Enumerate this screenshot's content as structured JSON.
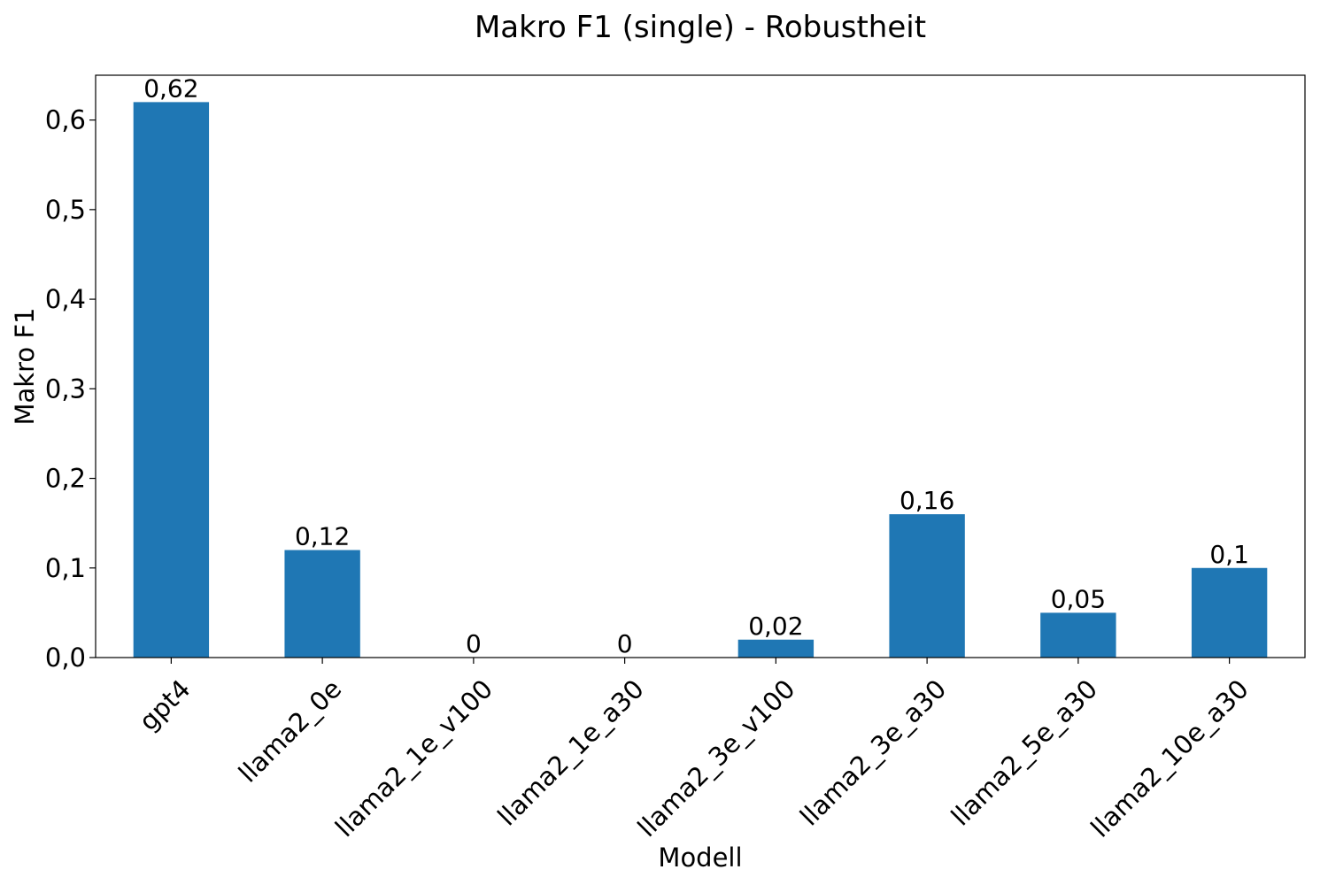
{
  "chart_data": {
    "type": "bar",
    "title": "Makro F1 (single) - Robustheit",
    "xlabel": "Modell",
    "ylabel": "Makro F1",
    "categories": [
      "gpt4",
      "llama2_0e",
      "llama2_1e_v100",
      "llama2_1e_a30",
      "llama2_3e_v100",
      "llama2_3e_a30",
      "llama2_5e_a30",
      "llama2_10e_a30"
    ],
    "values": [
      0.62,
      0.12,
      0,
      0,
      0.02,
      0.16,
      0.05,
      0.1
    ],
    "data_labels": [
      "0,62",
      "0,12",
      "0",
      "0",
      "0,02",
      "0,16",
      "0,05",
      "0,1"
    ],
    "ylim": [
      0,
      0.65
    ],
    "yticks": [
      0,
      0.1,
      0.2,
      0.3,
      0.4,
      0.5,
      0.6
    ],
    "ytick_labels": [
      "0,0",
      "0,1",
      "0,2",
      "0,3",
      "0,4",
      "0,5",
      "0,6"
    ],
    "bar_color": "#1f77b4",
    "grid": false,
    "legend": "none"
  }
}
